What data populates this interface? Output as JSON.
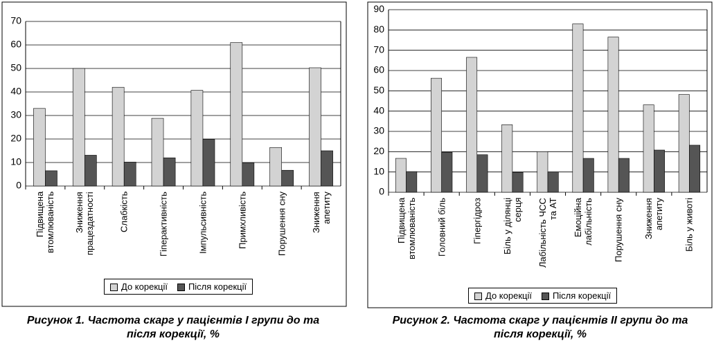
{
  "chart_data": [
    {
      "type": "bar",
      "title": "Рисунок 1. Частота скарг у пацієнтів I групи до та після корекції, %",
      "categories": [
        "Підвищена\nвтомлюваність",
        "Зниження\nпрацездатності",
        "Слабкість",
        "Гіперактивність",
        "Імпульсивність",
        "Примхливість",
        "Порушення сну",
        "Зниження\nапетиту"
      ],
      "series": [
        {
          "name": "До корекції",
          "color": "#d3d3d3",
          "values": [
            33,
            50,
            42,
            28.8,
            40.7,
            61,
            16.4,
            50.3
          ]
        },
        {
          "name": "Після корекції",
          "color": "#555555",
          "values": [
            6.5,
            13.1,
            10.2,
            12,
            19.8,
            9.9,
            6.7,
            15
          ]
        }
      ],
      "ylim": [
        0,
        70
      ],
      "yticks": [
        0,
        10,
        20,
        30,
        40,
        50,
        60,
        70
      ],
      "grid": true,
      "legend": "bottom"
    },
    {
      "type": "bar",
      "title": "Рисунок 2. Частота скарг у пацієнтів II групи до та після корекції, %",
      "categories": [
        "Підвищена\nвтомлюваність",
        "Головний біль",
        "Гіпергідроз",
        "Біль у ділянці\nсерця",
        "Лабільність ЧСС\nта АТ",
        "Емоційна\nлабільність",
        "Порушення сну",
        "Зниження\nапетиту",
        "Біль у животі"
      ],
      "series": [
        {
          "name": "До корекції",
          "color": "#d3d3d3",
          "values": [
            16.7,
            56.2,
            66.5,
            33.3,
            20,
            83,
            76.5,
            43.1,
            48.2
          ]
        },
        {
          "name": "Після корекції",
          "color": "#555555",
          "values": [
            10.2,
            19.7,
            18.5,
            9.8,
            10,
            16.7,
            16.7,
            20.8,
            23.2
          ]
        }
      ],
      "ylim": [
        0,
        90
      ],
      "yticks": [
        0,
        10,
        20,
        30,
        40,
        50,
        60,
        70,
        80,
        90
      ],
      "grid": true,
      "legend": "bottom"
    }
  ]
}
